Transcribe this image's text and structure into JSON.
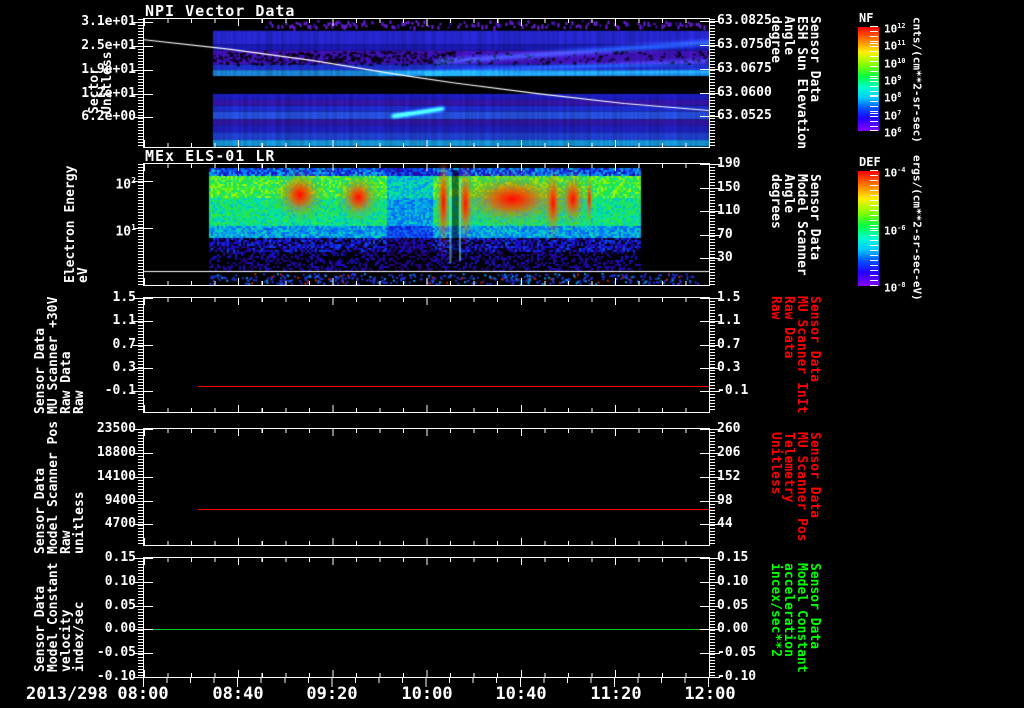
{
  "page": {
    "background": "#000000",
    "text_color": "#ffffff"
  },
  "x_axis": {
    "date_label": "2013/298",
    "tick_labels": [
      "08:00",
      "08:40",
      "09:20",
      "10:00",
      "10:40",
      "11:20",
      "12:00"
    ]
  },
  "chart_data": {
    "type": "multi-panel-time-series",
    "x_range": [
      "2013/298 08:00",
      "2013/298 12:00"
    ],
    "colorbars": [
      {
        "title": "NF",
        "tick_labels": [
          "10^12",
          "10^11",
          "10^10",
          "10^9",
          "10^8",
          "10^7",
          "10^6"
        ],
        "unit": "cnts/(cm**2-sr-sec)"
      },
      {
        "title": "DEF",
        "tick_labels": [
          "10^-4",
          "10^-6",
          "10^-8"
        ],
        "unit": "ergs/(cm**2-sr-sec-eV)"
      }
    ],
    "panels": [
      {
        "id": "npi-vector-data",
        "title": "NPI Vector Data",
        "type": "heatmap",
        "left_axis": {
          "label_lines": [
            "Sector",
            "Unitless"
          ],
          "scale": "linear",
          "ticks": {
            "labels": [
              "3.1e+01",
              "2.5e+01",
              "1.9e+01",
              "1.2e+01",
              "6.2e+00"
            ],
            "values": [
              31,
              24.8,
              18.6,
              12.4,
              6.2
            ]
          },
          "range": [
            -1.5,
            31.8
          ],
          "color": "#ffffff"
        },
        "right_axis": {
          "label_lines": [
            "Sensor Data",
            "ESH Sun Elevation",
            "Angle",
            "degree"
          ],
          "scale": "linear",
          "ticks": {
            "labels": [
              "63.0825",
              "63.0750",
              "63.0675",
              "63.0600",
              "63.0525"
            ],
            "values": [
              63.0825,
              63.075,
              63.0675,
              63.06,
              63.0525
            ]
          },
          "range": [
            63.0429,
            63.0831
          ],
          "color": "#ffffff"
        },
        "heatmap": {
          "data_start_frac": 0.122,
          "speckle_x0": 0.215,
          "bands": [
            {
              "y0": 0.092,
              "y1": 0.2,
              "color": "#2a2ae0"
            },
            {
              "y0": 0.2,
              "y1": 0.246,
              "color": "#1c1cc0"
            },
            {
              "y0": 0.246,
              "y1": 0.354,
              "color": "#4614c8"
            },
            {
              "y0": 0.354,
              "y1": 0.4,
              "color": "#2233dd"
            },
            {
              "y0": 0.4,
              "y1": 0.446,
              "color": "#1e8fe8"
            },
            {
              "y0": 0.585,
              "y1": 0.632,
              "color": "#2020d0"
            },
            {
              "y0": 0.632,
              "y1": 0.677,
              "color": "#3a18b8"
            },
            {
              "y0": 0.677,
              "y1": 0.723,
              "color": "#2130e0"
            },
            {
              "y0": 0.723,
              "y1": 0.785,
              "color": "#2a55ee"
            },
            {
              "y0": 0.785,
              "y1": 0.83,
              "color": "#3518b0"
            },
            {
              "y0": 0.83,
              "y1": 0.885,
              "color": "#2222cc"
            },
            {
              "y0": 0.885,
              "y1": 0.946,
              "color": "#2244dd"
            },
            {
              "y0": 0.946,
              "y1": 0.995,
              "color": "#19a0e8"
            }
          ],
          "glows": [
            [
              0.52,
              0.335,
              1.0,
              0.185,
              7
            ],
            [
              0.42,
              0.43,
              1.0,
              0.33,
              6
            ],
            [
              0.5,
              0.44,
              1.0,
              0.41,
              5
            ],
            [
              0.44,
              0.76,
              0.53,
              0.7,
              5
            ]
          ]
        },
        "overlay_line": {
          "color": "#ffffff",
          "points": [
            [
              0,
              0.162
            ],
            [
              0.15,
              0.235
            ],
            [
              0.3,
              0.325
            ],
            [
              0.45,
              0.435
            ],
            [
              0.55,
              0.5
            ],
            [
              0.7,
              0.585
            ],
            [
              0.85,
              0.66
            ],
            [
              1.0,
              0.715
            ]
          ]
        }
      },
      {
        "id": "mex-els-01-lr",
        "title": "MEx ELS-01 LR",
        "type": "heatmap",
        "left_axis": {
          "label_lines": [
            "Electron Energy",
            "eV"
          ],
          "scale": "log",
          "ticks": {
            "labels": [
              "10^2",
              "10^1"
            ],
            "values": [
              100,
              10
            ]
          },
          "range": [
            0.616,
            226
          ],
          "color": "#ffffff"
        },
        "right_axis": {
          "label_lines": [
            "Sensor Data",
            "Model Scanner",
            "Angle",
            "degrees"
          ],
          "scale": "linear",
          "ticks": {
            "labels": [
              "190",
              "150",
              "110",
              "70",
              "30"
            ],
            "values": [
              190,
              150,
              110,
              70,
              30
            ]
          },
          "range": [
            -15,
            190
          ],
          "color": "#ffffff"
        },
        "heatmap": {
          "x0": 0.115,
          "x1": 0.877,
          "white_line_frac": 0.886,
          "dim_zone": [
            0.43,
            0.51
          ],
          "notch_x": 0.545,
          "blobs": [
            [
              0.25,
              0.12,
              0.052,
              0.27
            ],
            [
              0.357,
              0.15,
              0.045,
              0.25
            ],
            [
              0.522,
              0.04,
              0.016,
              0.55
            ],
            [
              0.56,
              0.1,
              0.018,
              0.45
            ],
            [
              0.592,
              0.14,
              0.12,
              0.3
            ],
            [
              0.714,
              0.12,
              0.02,
              0.4
            ],
            [
              0.744,
              0.13,
              0.03,
              0.32
            ],
            [
              0.784,
              0.15,
              0.008,
              0.28
            ]
          ]
        }
      },
      {
        "id": "mu-scanner-30v",
        "title": "",
        "type": "line",
        "left_axis": {
          "label_lines": [
            "Sensor Data",
            "MU Scanner +30V",
            "Raw Data",
            "Raw"
          ],
          "scale": "linear",
          "ticks": {
            "labels": [
              "1.5",
              "1.1",
              "0.7",
              "0.3",
              "-0.1"
            ],
            "values": [
              1.5,
              1.1,
              0.7,
              0.3,
              -0.1
            ]
          },
          "range": [
            -0.454,
            1.5
          ],
          "color": "#ffffff"
        },
        "right_axis": {
          "label_lines": [
            "Sensor Data",
            "MU Scanner InIt",
            "Raw Data",
            "Raw"
          ],
          "scale": "linear",
          "ticks": {
            "labels": [
              "1.5",
              "1.1",
              "0.7",
              "0.3",
              "-0.1"
            ],
            "values": [
              1.5,
              1.1,
              0.7,
              0.3,
              -0.1
            ]
          },
          "range": [
            -0.454,
            1.5
          ],
          "color": "#ff0000"
        },
        "series": {
          "value": 0.0,
          "color": "#ff0000",
          "x_start_frac": 0.095
        }
      },
      {
        "id": "model-scanner-pos",
        "title": "",
        "type": "line",
        "left_axis": {
          "label_lines": [
            "Sensor Data",
            "Model Scanner Pos",
            "Raw",
            "unitless"
          ],
          "scale": "linear",
          "ticks": {
            "labels": [
              "23500",
              "18800",
              "14100",
              "9400",
              "4700"
            ],
            "values": [
              23500,
              18800,
              14100,
              9400,
              4700
            ]
          },
          "range": [
            629,
            23500
          ],
          "color": "#ffffff"
        },
        "right_axis": {
          "label_lines": [
            "Sensor Data",
            "MU Scanner Pos",
            "Telemetry",
            "Unitless"
          ],
          "scale": "linear",
          "ticks": {
            "labels": [
              "260",
              "206",
              "152",
              "98",
              "44"
            ],
            "values": [
              260,
              206,
              152,
              98,
              44
            ]
          },
          "range": [
            -2.8,
            260
          ],
          "color": "#ff0000"
        },
        "series": {
          "value": 7800,
          "color": "#ff0000",
          "x_start_frac": 0.095
        }
      },
      {
        "id": "model-constant-velocity",
        "title": "",
        "type": "line",
        "left_axis": {
          "label_lines": [
            "Sensor Data",
            "Model Constant",
            "velocity",
            "index/sec"
          ],
          "scale": "linear",
          "ticks": {
            "labels": [
              "0.15",
              "0.10",
              "0.05",
              "0.00",
              "-0.05",
              "-0.10"
            ],
            "values": [
              0.15,
              0.1,
              0.05,
              0.0,
              -0.05,
              -0.1
            ]
          },
          "range": [
            -0.1,
            0.15
          ],
          "color": "#ffffff"
        },
        "right_axis": {
          "label_lines": [
            "Sensor Data",
            "Model Constant",
            "acceleration",
            "incex/sec**2"
          ],
          "scale": "linear",
          "ticks": {
            "labels": [
              "0.15",
              "0.10",
              "0.05",
              "0.00",
              "-0.05",
              "-0.10"
            ],
            "values": [
              0.15,
              0.1,
              0.05,
              0.0,
              -0.05,
              -0.1
            ]
          },
          "range": [
            -0.1,
            0.15
          ],
          "color": "#00ff00"
        },
        "series": {
          "value": 0.0,
          "color": "#00cc22",
          "x_start_frac": 0.0
        }
      }
    ]
  }
}
